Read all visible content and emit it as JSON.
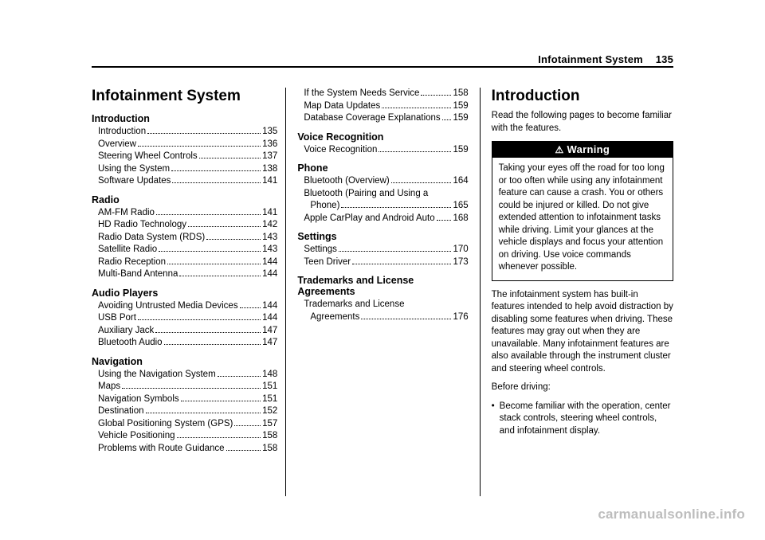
{
  "page": {
    "header_title": "Infotainment System",
    "page_number": "135",
    "watermark": "carmanualsonline.info"
  },
  "col1": {
    "chapter_title": "Infotainment System",
    "sections": [
      {
        "heading": "Introduction",
        "items": [
          {
            "label": "Introduction",
            "pg": "135"
          },
          {
            "label": "Overview",
            "pg": "136"
          },
          {
            "label": "Steering Wheel Controls",
            "pg": "137"
          },
          {
            "label": "Using the System",
            "pg": "138"
          },
          {
            "label": "Software Updates",
            "pg": "141"
          }
        ]
      },
      {
        "heading": "Radio",
        "items": [
          {
            "label": "AM-FM Radio",
            "pg": "141"
          },
          {
            "label": "HD Radio Technology",
            "pg": "142"
          },
          {
            "label": "Radio Data System (RDS)",
            "pg": "143"
          },
          {
            "label": "Satellite Radio",
            "pg": "143"
          },
          {
            "label": "Radio Reception",
            "pg": "144"
          },
          {
            "label": "Multi-Band Antenna",
            "pg": "144"
          }
        ]
      },
      {
        "heading": "Audio Players",
        "items": [
          {
            "label": "Avoiding Untrusted Media Devices",
            "pg": "144"
          },
          {
            "label": "USB Port",
            "pg": "144"
          },
          {
            "label": "Auxiliary Jack",
            "pg": "147"
          },
          {
            "label": "Bluetooth Audio",
            "pg": "147"
          }
        ]
      },
      {
        "heading": "Navigation",
        "items": [
          {
            "label": "Using the Navigation System",
            "pg": "148"
          },
          {
            "label": "Maps",
            "pg": "151"
          },
          {
            "label": "Navigation Symbols",
            "pg": "151"
          },
          {
            "label": "Destination",
            "pg": "152"
          },
          {
            "label": "Global Positioning System (GPS)",
            "pg": "157"
          },
          {
            "label": "Vehicle Positioning",
            "pg": "158"
          },
          {
            "label": "Problems with Route Guidance",
            "pg": "158"
          }
        ]
      }
    ]
  },
  "col2": {
    "top_items": [
      {
        "label": "If the System Needs Service",
        "pg": "158"
      },
      {
        "label": "Map Data Updates",
        "pg": "159"
      },
      {
        "label": "Database Coverage Explanations",
        "pg": "159"
      }
    ],
    "sections": [
      {
        "heading": "Voice Recognition",
        "items": [
          {
            "label": "Voice Recognition",
            "pg": "159"
          }
        ]
      },
      {
        "heading": "Phone",
        "items": [
          {
            "label": "Bluetooth (Overview)",
            "pg": "164"
          },
          {
            "label_multi": [
              "Bluetooth (Pairing and Using a",
              "Phone)"
            ],
            "pg": "165"
          },
          {
            "label": "Apple CarPlay and Android Auto",
            "pg": "168"
          }
        ]
      },
      {
        "heading": "Settings",
        "items": [
          {
            "label": "Settings",
            "pg": "170"
          },
          {
            "label": "Teen Driver",
            "pg": "173"
          }
        ]
      },
      {
        "heading": "Trademarks and License Agreements",
        "items": [
          {
            "label_multi": [
              "Trademarks and License",
              "Agreements"
            ],
            "pg": "176"
          }
        ]
      }
    ]
  },
  "col3": {
    "heading": "Introduction",
    "intro_para": "Read the following pages to become familiar with the features.",
    "warning_label": "Warning",
    "warning_body": "Taking your eyes off the road for too long or too often while using any infotainment feature can cause a crash. You or others could be injured or killed. Do not give extended attention to infotainment tasks while driving. Limit your glances at the vehicle displays and focus your attention on driving. Use voice commands whenever possible.",
    "para2": "The infotainment system has built-in features intended to help avoid distraction by disabling some features when driving. These features may gray out when they are unavailable. Many infotainment features are also available through the instrument cluster and steering wheel controls.",
    "before_driving": "Before driving:",
    "bullets": [
      "Become familiar with the operation, center stack controls, steering wheel controls, and infotainment display."
    ]
  }
}
